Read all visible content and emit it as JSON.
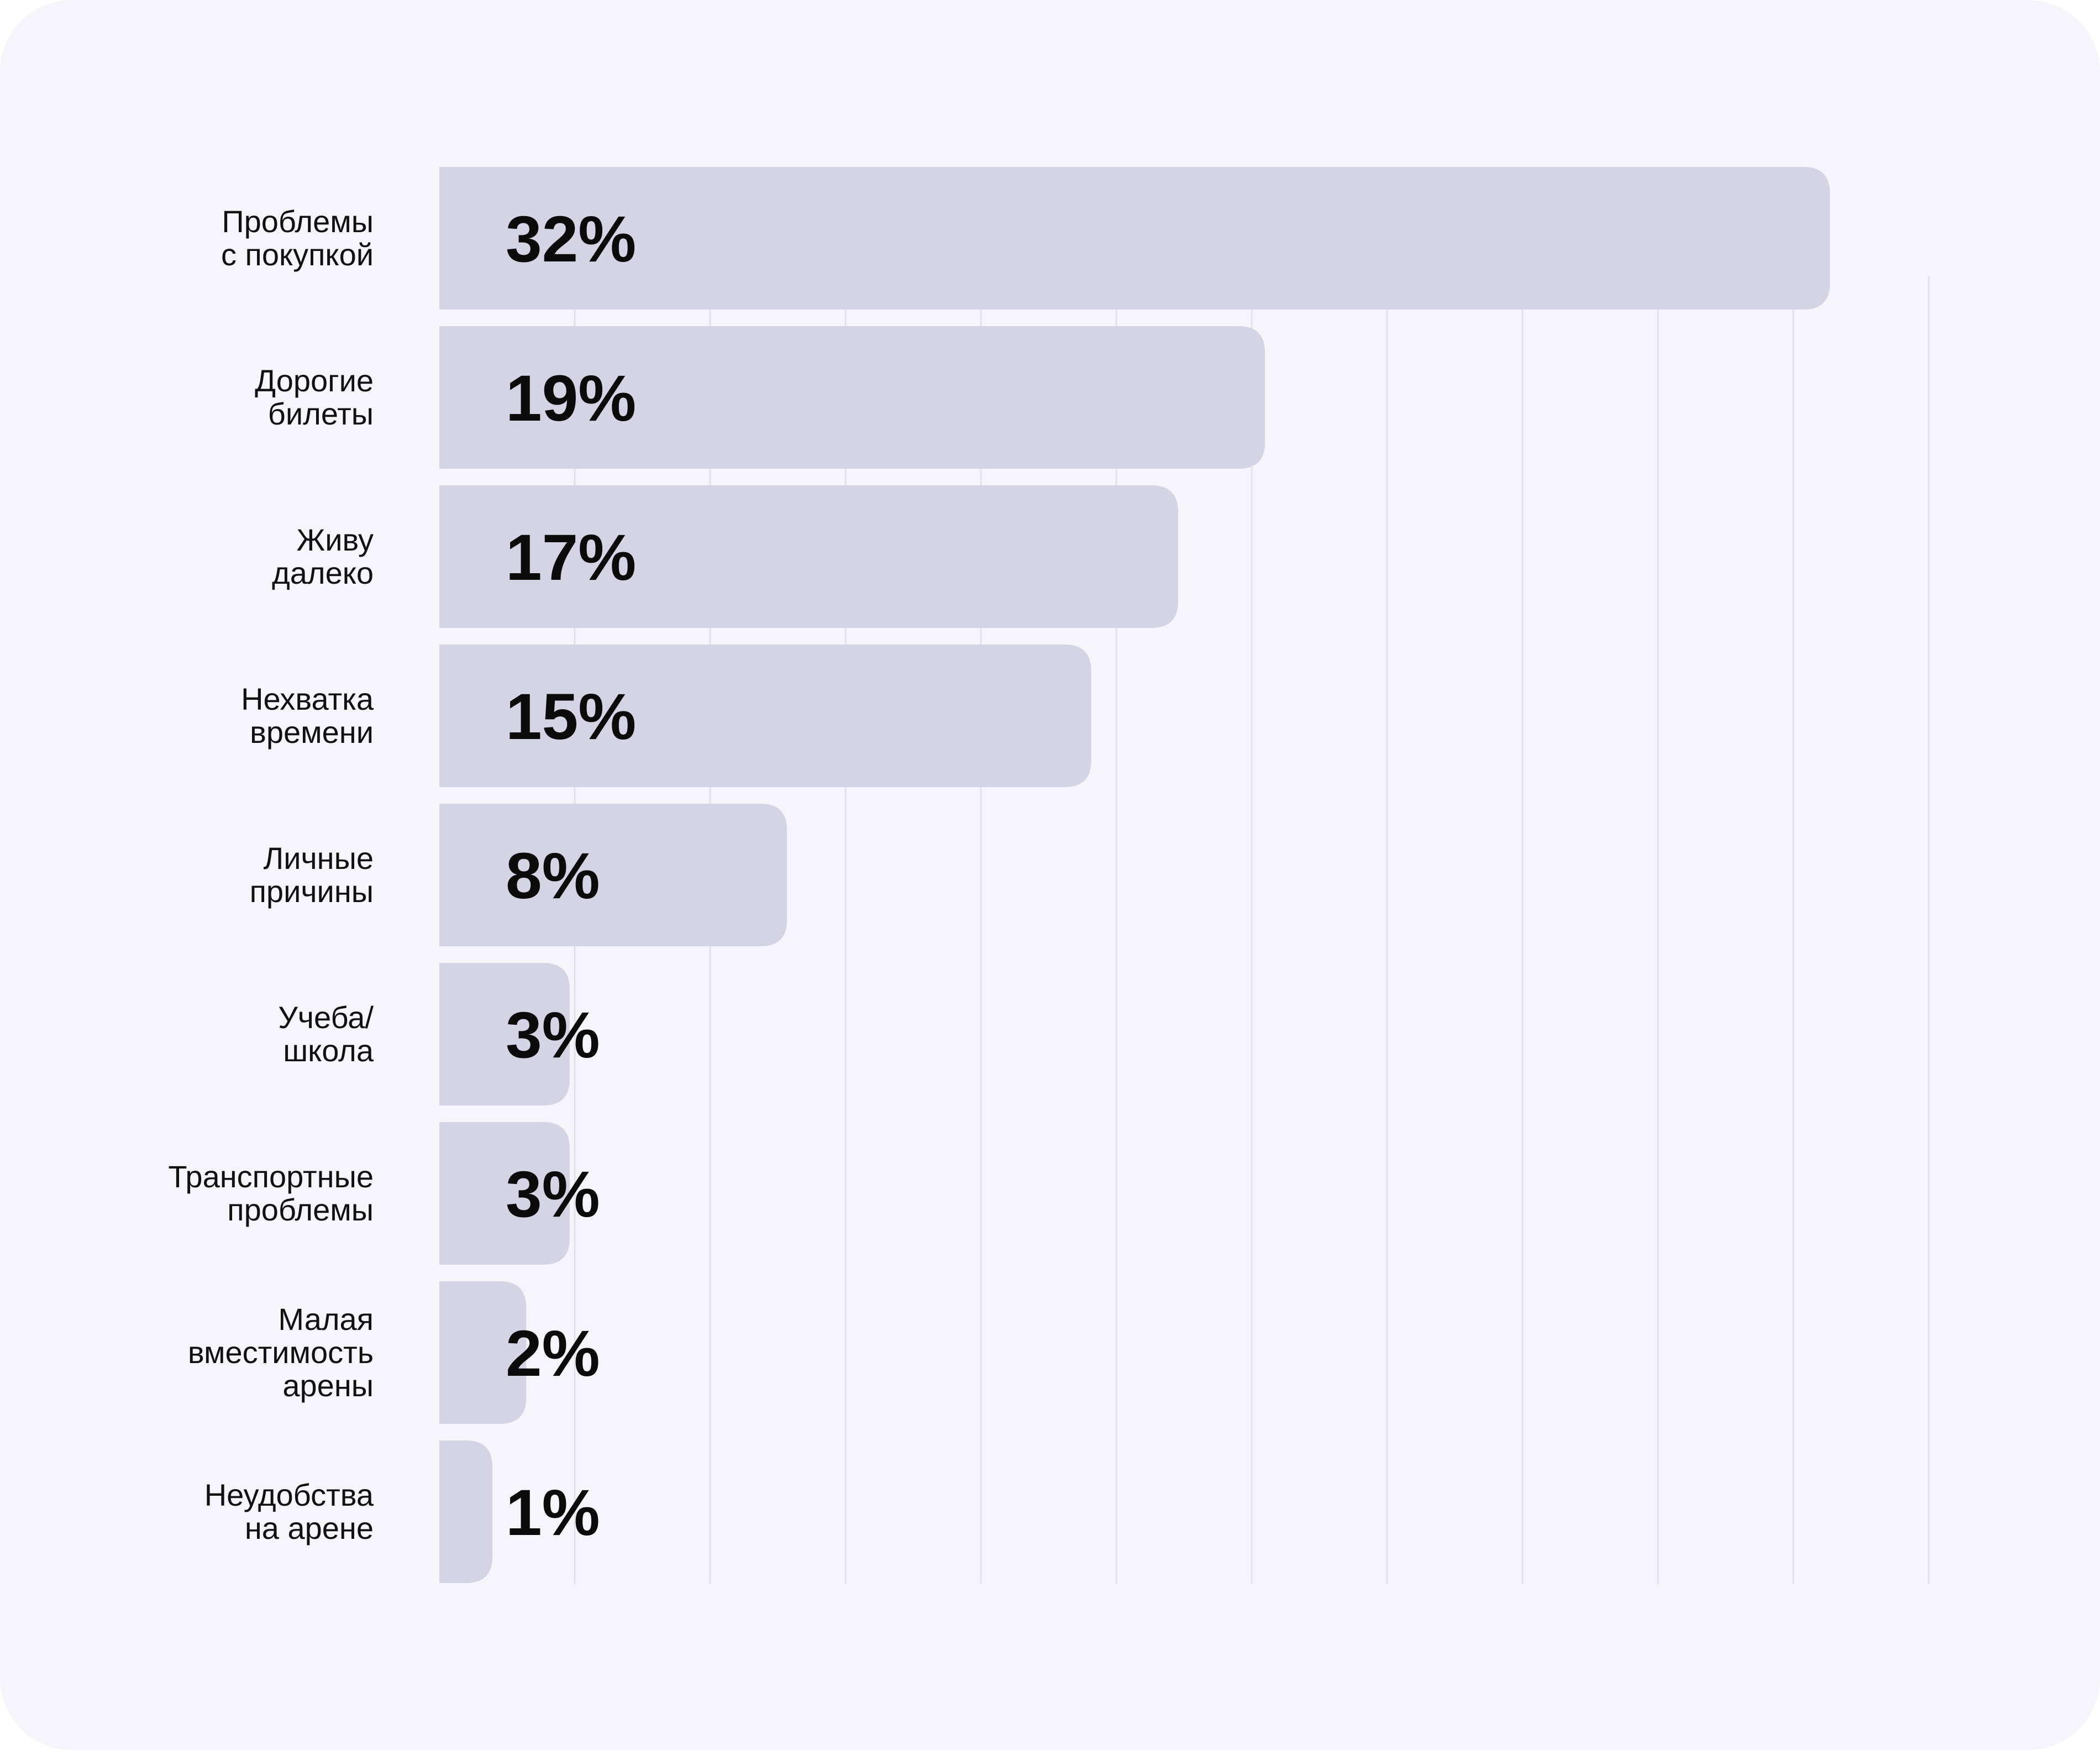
{
  "chart_data": {
    "type": "bar",
    "orientation": "horizontal",
    "categories": [
      [
        "Проблемы",
        "с покупкой"
      ],
      [
        "Дорогие",
        "билеты"
      ],
      [
        "Живу",
        "далеко"
      ],
      [
        "Нехватка",
        "времени"
      ],
      [
        "Личные",
        "причины"
      ],
      [
        "Учеба/",
        "школа"
      ],
      [
        "Транспортные",
        "проблемы"
      ],
      [
        "Малая",
        "вместимость",
        "арены"
      ],
      [
        "Неудобства",
        "на арене"
      ]
    ],
    "values": [
      32,
      19,
      17,
      15,
      8,
      3,
      3,
      2,
      1
    ],
    "value_labels": [
      "32%",
      "19%",
      "17%",
      "15%",
      "8%",
      "3%",
      "3%",
      "2%",
      "1%"
    ],
    "xlim": [
      0,
      33
    ],
    "grid": true,
    "colors": {
      "background": "#f6f5fb",
      "bar": "#d4d4e4",
      "grid": "#e2e2ec",
      "text": "#111111"
    }
  }
}
